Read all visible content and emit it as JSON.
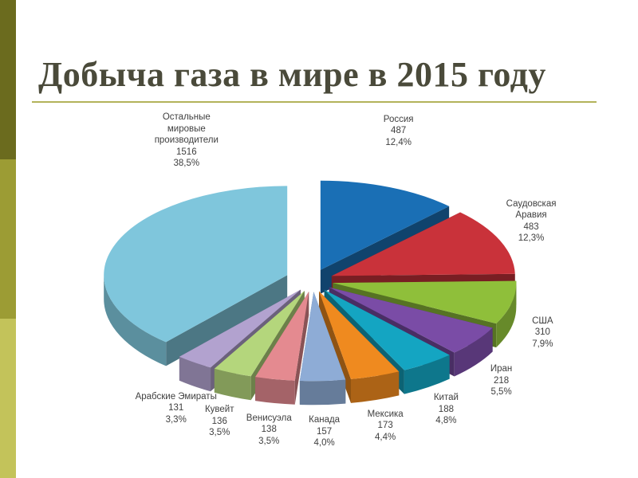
{
  "theme": {
    "sidebar_colors": [
      "#6b6b1e",
      "#9c9c34",
      "#c3c35a",
      "#e1e1a8"
    ],
    "rule_color": "#b3b35a",
    "title_color": "#4a4a3a"
  },
  "slide": {
    "title": "Добыча газа в мире в 2015 году"
  },
  "chart_data": {
    "type": "pie",
    "title": "",
    "style": "3d-exploded",
    "units": "",
    "slices": [
      {
        "label": [
          "Россия"
        ],
        "value": 487,
        "percent": "12,4%",
        "color": "#1a6fb5"
      },
      {
        "label": [
          "Саудовская",
          "Аравия"
        ],
        "value": 483,
        "percent": "12,3%",
        "color": "#c9323a"
      },
      {
        "label": [
          "США"
        ],
        "value": 310,
        "percent": "7,9%",
        "color": "#8fbf3a"
      },
      {
        "label": [
          "Иран"
        ],
        "value": 218,
        "percent": "5,5%",
        "color": "#7a4ca6"
      },
      {
        "label": [
          "Китай"
        ],
        "value": 188,
        "percent": "4,8%",
        "color": "#14a5c2"
      },
      {
        "label": [
          "Мексика"
        ],
        "value": 173,
        "percent": "4,4%",
        "color": "#ef8a1f"
      },
      {
        "label": [
          "Канада"
        ],
        "value": 157,
        "percent": "4,0%",
        "color": "#8eacd6"
      },
      {
        "label": [
          "Венисуэла"
        ],
        "value": 138,
        "percent": "3,5%",
        "color": "#e48a90"
      },
      {
        "label": [
          "Кувейт"
        ],
        "value": 136,
        "percent": "3,5%",
        "color": "#b4d67c"
      },
      {
        "label": [
          "Арабские Эмираты"
        ],
        "value": 131,
        "percent": "3,3%",
        "color": "#b2a2cf"
      },
      {
        "label": [
          "Остальные",
          "мировые",
          "производители"
        ],
        "value": 1516,
        "percent": "38,5%",
        "color": "#7fc6dc"
      }
    ]
  }
}
